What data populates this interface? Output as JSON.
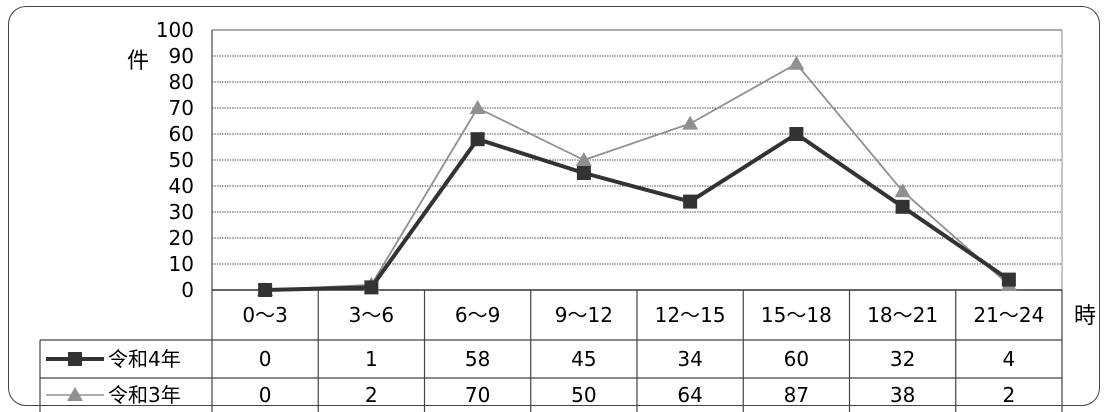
{
  "chart_data": {
    "type": "line",
    "categories": [
      "0～3",
      "3～6",
      "6～9",
      "9～12",
      "12～15",
      "15～18",
      "18～21",
      "21～24"
    ],
    "series": [
      {
        "name": "令和4年",
        "values": [
          0,
          1,
          58,
          45,
          34,
          60,
          32,
          4
        ],
        "color": "#333333",
        "marker": "square"
      },
      {
        "name": "令和3年",
        "values": [
          0,
          2,
          70,
          50,
          64,
          87,
          38,
          2
        ],
        "color": "#909090",
        "marker": "triangle"
      }
    ],
    "ylabel": "件",
    "xlabel": "時",
    "ylim": [
      0,
      100
    ],
    "yticks": [
      0,
      10,
      20,
      30,
      40,
      50,
      60,
      70,
      80,
      90,
      100
    ],
    "grid": true,
    "data_table": true
  }
}
